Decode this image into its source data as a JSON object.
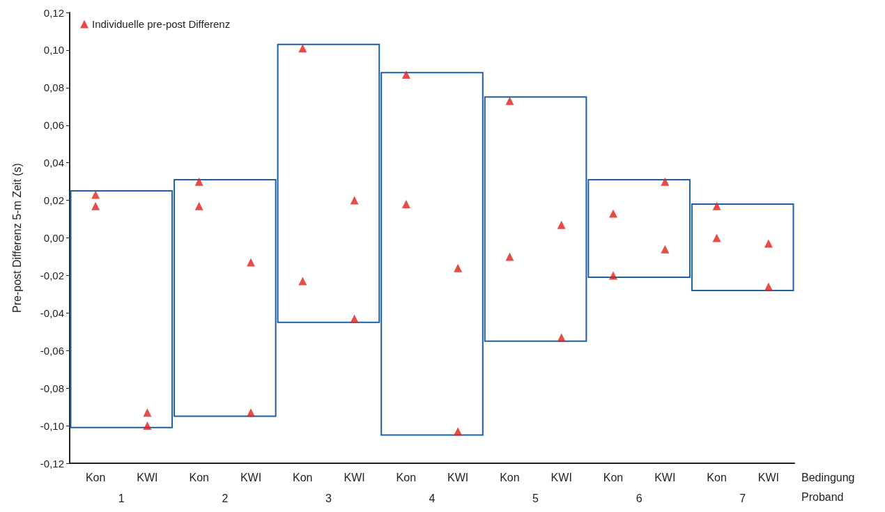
{
  "chart_data": {
    "type": "scatter",
    "ylabel": "Pre-post Differenz 5-m Zeit (s)",
    "xlabel": "Bedingung",
    "categories": [
      "Kon",
      "KWI",
      "Kon",
      "KWI",
      "Kon",
      "KWI",
      "Kon",
      "KWI",
      "Kon",
      "KWI",
      "Kon",
      "KWI",
      "Kon",
      "KWI"
    ],
    "series": [
      {
        "type": "bar",
        "color": "#1f5fa8",
        "base": [
          -0.101,
          null,
          -0.095,
          null,
          -0.045,
          null,
          -0.105,
          null,
          -0.055,
          null,
          -0.021,
          null,
          -0.028,
          null
        ],
        "values": [
          0.126,
          null,
          0.126,
          null,
          0.148,
          null,
          0.193,
          null,
          0.13,
          null,
          0.052,
          null,
          0.046,
          null
        ]
      },
      {
        "name": "Individuelle pre-post Differenz",
        "color": "#e0201b",
        "values": [
          0.023,
          -0.093,
          0.03,
          -0.013,
          0.101,
          0.02,
          0.087,
          -0.016,
          0.073,
          0.007,
          0.013,
          0.03,
          0.017,
          -0.003
        ]
      },
      {
        "color": "#e0201b",
        "values": [
          0.017,
          -0.1,
          0.017,
          -0.093,
          -0.023,
          -0.043,
          0.018,
          -0.103,
          -0.01,
          -0.053,
          -0.02,
          -0.006,
          0.0,
          -0.026
        ]
      }
    ],
    "annotations": [
      "1",
      "2",
      "3",
      "4",
      "5",
      "6",
      "7",
      "Proband"
    ],
    "ylim": [
      -0.12,
      0.12
    ],
    "yticks": [
      {
        "value": -0.12,
        "label": "-0,12"
      },
      {
        "value": -0.1,
        "label": "-0,10"
      },
      {
        "value": -0.08,
        "label": "-0,08"
      },
      {
        "value": -0.06,
        "label": "-0,06"
      },
      {
        "value": -0.04,
        "label": "-0,04"
      },
      {
        "value": -0.02,
        "label": "-0,02"
      },
      {
        "value": 0,
        "label": "0,00"
      },
      {
        "value": 0.02,
        "label": "0,02"
      },
      {
        "value": 0.04,
        "label": "0,04"
      },
      {
        "value": 0.06,
        "label": "0,06"
      },
      {
        "value": 0.08,
        "label": "0,08"
      },
      {
        "value": 0.1,
        "label": "0,10"
      },
      {
        "value": 0.12,
        "label": "0,12"
      }
    ],
    "marker": "triangle",
    "legend": "top left",
    "grid": false
  }
}
